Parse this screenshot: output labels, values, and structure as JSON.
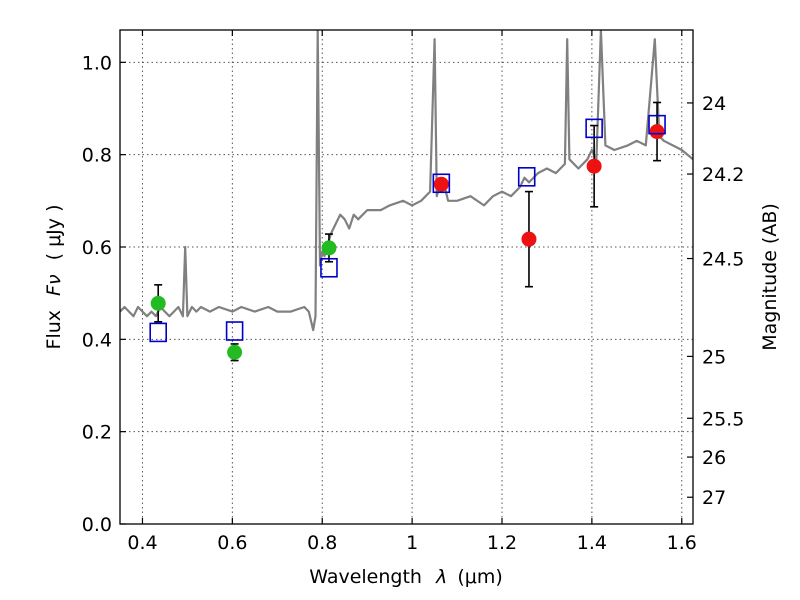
{
  "chart_data": {
    "type": "scatter",
    "xlabel_prefix": "Wavelength",
    "xlabel_symbol": "λ",
    "xlabel_unit": "(μm)",
    "ylabel_prefix": "Flux",
    "ylabel_symbol": "Fν",
    "ylabel_unit": "( μJy )",
    "y2label": "Magnitude (AB)",
    "xlim": [
      0.35,
      1.625
    ],
    "ylim": [
      0.0,
      1.07
    ],
    "grid": true,
    "x_ticks": [
      {
        "value": 0.4,
        "label": "0.4"
      },
      {
        "value": 0.6,
        "label": "0.6"
      },
      {
        "value": 0.8,
        "label": "0.8"
      },
      {
        "value": 1.0,
        "label": "1"
      },
      {
        "value": 1.2,
        "label": "1.2"
      },
      {
        "value": 1.4,
        "label": "1.4"
      },
      {
        "value": 1.6,
        "label": "1.6"
      }
    ],
    "y_ticks": [
      {
        "value": 0.0,
        "label": "0.0"
      },
      {
        "value": 0.2,
        "label": "0.2"
      },
      {
        "value": 0.4,
        "label": "0.4"
      },
      {
        "value": 0.6,
        "label": "0.6"
      },
      {
        "value": 0.8,
        "label": "0.8"
      },
      {
        "value": 1.0,
        "label": "1.0"
      }
    ],
    "y2_ticks": [
      {
        "flux": 0.912,
        "label": "24"
      },
      {
        "flux": 0.758,
        "label": "24.2"
      },
      {
        "flux": 0.575,
        "label": "24.5"
      },
      {
        "flux": 0.363,
        "label": "25"
      },
      {
        "flux": 0.229,
        "label": "25.5"
      },
      {
        "flux": 0.145,
        "label": "26"
      },
      {
        "flux": 0.058,
        "label": "27"
      }
    ],
    "colors": {
      "spectrum": "#808080",
      "model_square": "#0000cc",
      "green_point": "#22bb22",
      "red_point": "#ee1111",
      "errorbar": "#000000"
    },
    "series": [
      {
        "name": "model spectrum",
        "kind": "line",
        "x": [
          0.35,
          0.36,
          0.37,
          0.38,
          0.39,
          0.4,
          0.41,
          0.42,
          0.43,
          0.44,
          0.45,
          0.46,
          0.47,
          0.48,
          0.49,
          0.495,
          0.5,
          0.51,
          0.52,
          0.53,
          0.55,
          0.57,
          0.6,
          0.62,
          0.65,
          0.68,
          0.7,
          0.73,
          0.76,
          0.77,
          0.78,
          0.785,
          0.79,
          0.795,
          0.8,
          0.805,
          0.81,
          0.82,
          0.83,
          0.84,
          0.85,
          0.86,
          0.87,
          0.88,
          0.9,
          0.93,
          0.95,
          0.98,
          1.0,
          1.02,
          1.04,
          1.05,
          1.055,
          1.06,
          1.07,
          1.08,
          1.1,
          1.13,
          1.16,
          1.18,
          1.2,
          1.22,
          1.24,
          1.25,
          1.26,
          1.28,
          1.3,
          1.32,
          1.34,
          1.345,
          1.35,
          1.37,
          1.39,
          1.4,
          1.41,
          1.42,
          1.43,
          1.45,
          1.48,
          1.5,
          1.52,
          1.54,
          1.55,
          1.56,
          1.58,
          1.6,
          1.625
        ],
        "y": [
          0.46,
          0.47,
          0.46,
          0.45,
          0.47,
          0.46,
          0.45,
          0.46,
          0.45,
          0.47,
          0.46,
          0.45,
          0.46,
          0.47,
          0.45,
          0.6,
          0.45,
          0.47,
          0.46,
          0.47,
          0.46,
          0.47,
          0.46,
          0.47,
          0.46,
          0.47,
          0.46,
          0.46,
          0.47,
          0.46,
          0.42,
          0.45,
          1.07,
          0.56,
          0.59,
          0.58,
          0.6,
          0.63,
          0.65,
          0.67,
          0.66,
          0.64,
          0.67,
          0.66,
          0.68,
          0.68,
          0.69,
          0.7,
          0.69,
          0.7,
          0.72,
          1.05,
          0.71,
          0.73,
          0.74,
          0.7,
          0.7,
          0.71,
          0.69,
          0.71,
          0.72,
          0.71,
          0.73,
          0.75,
          0.74,
          0.76,
          0.77,
          0.76,
          0.78,
          1.05,
          0.79,
          0.77,
          0.79,
          0.81,
          0.79,
          1.07,
          0.82,
          0.81,
          0.82,
          0.83,
          0.82,
          1.05,
          0.84,
          0.83,
          0.82,
          0.81,
          0.79
        ]
      },
      {
        "name": "model photometry",
        "kind": "square",
        "x": [
          0.435,
          0.605,
          0.815,
          1.065,
          1.255,
          1.405,
          1.545
        ],
        "y": [
          0.415,
          0.418,
          0.555,
          0.738,
          0.752,
          0.857,
          0.865
        ]
      },
      {
        "name": "observed (green)",
        "kind": "circle",
        "x": [
          0.435,
          0.605,
          0.815
        ],
        "y": [
          0.478,
          0.372,
          0.598
        ],
        "err": [
          0.04,
          0.018,
          0.03
        ]
      },
      {
        "name": "observed (red)",
        "kind": "circle",
        "x": [
          1.065,
          1.26,
          1.405,
          1.545
        ],
        "y": [
          0.736,
          0.617,
          0.775,
          0.85
        ],
        "err": [
          0.0,
          0.103,
          0.088,
          0.063
        ]
      }
    ]
  }
}
